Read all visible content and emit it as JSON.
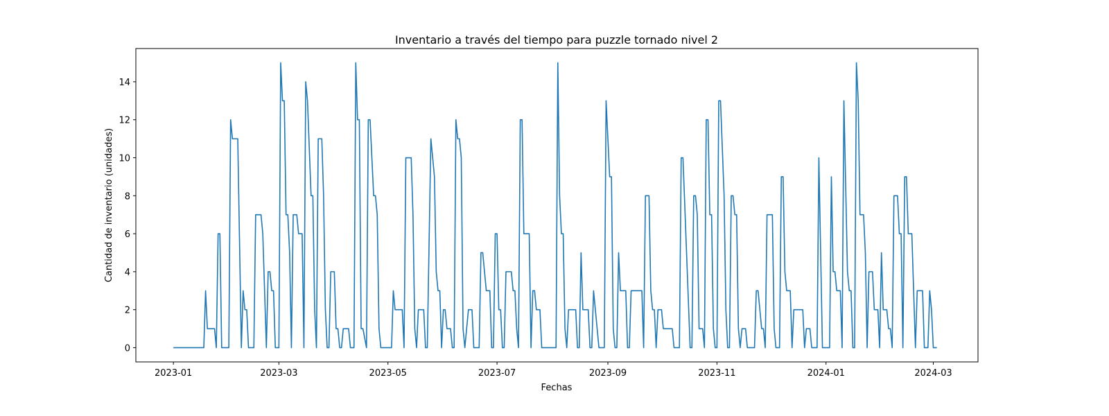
{
  "chart_data": {
    "type": "line",
    "title": "Inventario a través del tiempo para puzzle tornado nivel 2",
    "xlabel": "Fechas",
    "ylabel": "Cantidad de inventario (unidades)",
    "color": "#1f77b4",
    "grid": false,
    "xlim": [
      -21,
      450
    ],
    "ylim": [
      -0.75,
      15.75
    ],
    "xticks": [
      {
        "value": 0,
        "label": "2023-01"
      },
      {
        "value": 59,
        "label": "2023-03"
      },
      {
        "value": 120,
        "label": "2023-05"
      },
      {
        "value": 181,
        "label": "2023-07"
      },
      {
        "value": 243,
        "label": "2023-09"
      },
      {
        "value": 304,
        "label": "2023-11"
      },
      {
        "value": 365,
        "label": "2024-01"
      },
      {
        "value": 425,
        "label": "2024-03"
      }
    ],
    "yticks": [
      0,
      2,
      4,
      6,
      8,
      10,
      12,
      14
    ],
    "x": [
      0,
      17,
      18,
      19,
      23,
      24,
      25,
      26,
      27,
      31,
      32,
      33,
      36,
      38,
      39,
      40,
      41,
      42,
      45,
      46,
      49,
      50,
      52,
      53,
      54,
      55,
      56,
      57,
      59,
      60,
      61,
      62,
      63,
      64,
      65,
      66,
      67,
      69,
      70,
      72,
      73,
      74,
      75,
      77,
      78,
      79,
      80,
      81,
      83,
      84,
      85,
      86,
      87,
      88,
      90,
      91,
      92,
      93,
      94,
      95,
      98,
      99,
      101,
      102,
      103,
      104,
      105,
      106,
      108,
      109,
      110,
      112,
      113,
      114,
      115,
      116,
      122,
      123,
      124,
      128,
      129,
      130,
      133,
      134,
      135,
      136,
      137,
      140,
      141,
      142,
      144,
      146,
      147,
      148,
      149,
      150,
      151,
      152,
      153,
      155,
      156,
      157,
      158,
      159,
      160,
      161,
      162,
      163,
      165,
      167,
      168,
      171,
      172,
      173,
      175,
      177,
      178,
      179,
      180,
      181,
      182,
      183,
      184,
      185,
      186,
      189,
      190,
      191,
      192,
      193,
      194,
      195,
      196,
      199,
      200,
      201,
      202,
      203,
      205,
      206,
      214,
      215,
      216,
      217,
      218,
      219,
      220,
      221,
      225,
      226,
      227,
      228,
      229,
      232,
      233,
      234,
      235,
      238,
      241,
      242,
      244,
      245,
      246,
      247,
      248,
      249,
      250,
      253,
      254,
      255,
      256,
      262,
      263,
      264,
      266,
      267,
      268,
      269,
      270,
      271,
      273,
      274,
      279,
      280,
      283,
      284,
      285,
      289,
      290,
      291,
      292,
      293,
      294,
      296,
      297,
      298,
      299,
      300,
      301,
      302,
      303,
      304,
      305,
      306,
      308,
      309,
      310,
      311,
      312,
      313,
      314,
      315,
      316,
      317,
      318,
      320,
      321,
      325,
      326,
      327,
      329,
      330,
      331,
      332,
      335,
      336,
      337,
      339,
      340,
      341,
      342,
      343,
      345,
      346,
      347,
      352,
      353,
      354,
      356,
      357,
      360,
      361,
      363,
      367,
      368,
      369,
      370,
      371,
      373,
      374,
      375,
      377,
      378,
      379,
      380,
      381,
      382,
      383,
      384,
      386,
      387,
      388,
      389,
      391,
      392,
      394,
      395,
      396,
      397,
      399,
      400,
      401,
      402,
      403,
      405,
      406,
      407,
      408,
      409,
      410,
      411,
      413,
      414,
      415,
      416,
      419,
      420,
      422,
      423,
      424,
      425,
      427
    ],
    "values": [
      0,
      0,
      3,
      1,
      1,
      0,
      6,
      6,
      0,
      0,
      12,
      11,
      11,
      0,
      3,
      2,
      2,
      0,
      0,
      7,
      7,
      6,
      0,
      4,
      4,
      3,
      3,
      0,
      0,
      15,
      13,
      13,
      7,
      7,
      5,
      0,
      7,
      7,
      6,
      6,
      0,
      14,
      13,
      8,
      8,
      2,
      0,
      11,
      11,
      8,
      2,
      0,
      0,
      4,
      4,
      1,
      1,
      0,
      0,
      1,
      1,
      0,
      0,
      15,
      12,
      12,
      1,
      1,
      0,
      12,
      12,
      8,
      8,
      7,
      1,
      0,
      0,
      3,
      2,
      2,
      0,
      10,
      10,
      7,
      1,
      0,
      2,
      2,
      0,
      0,
      11,
      9,
      4,
      3,
      3,
      0,
      2,
      2,
      1,
      1,
      0,
      0,
      12,
      11,
      11,
      10,
      1,
      0,
      2,
      2,
      0,
      0,
      5,
      5,
      3,
      3,
      0,
      0,
      6,
      6,
      2,
      2,
      0,
      0,
      4,
      4,
      3,
      3,
      1,
      0,
      12,
      12,
      6,
      6,
      0,
      3,
      3,
      2,
      2,
      0,
      0,
      15,
      8,
      6,
      6,
      1,
      0,
      2,
      2,
      0,
      0,
      5,
      2,
      2,
      0,
      0,
      3,
      0,
      0,
      13,
      9,
      9,
      1,
      0,
      0,
      5,
      3,
      3,
      0,
      0,
      3,
      3,
      0,
      8,
      8,
      3,
      2,
      2,
      0,
      2,
      2,
      1,
      1,
      0,
      0,
      10,
      10,
      0,
      0,
      8,
      8,
      7,
      1,
      1,
      0,
      12,
      12,
      7,
      7,
      1,
      0,
      0,
      13,
      13,
      8,
      2,
      0,
      0,
      8,
      8,
      7,
      7,
      1,
      0,
      1,
      1,
      0,
      0,
      3,
      3,
      1,
      1,
      0,
      7,
      7,
      1,
      0,
      0,
      9,
      9,
      4,
      3,
      3,
      0,
      2,
      2,
      0,
      1,
      1,
      0,
      0,
      10,
      0,
      0,
      9,
      4,
      4,
      3,
      3,
      0,
      13,
      4,
      3,
      3,
      0,
      0,
      15,
      13,
      7,
      7,
      5,
      0,
      4,
      4,
      2,
      2,
      0,
      5,
      2,
      2,
      1,
      1,
      0,
      8,
      8,
      6,
      6,
      0,
      9,
      9,
      6,
      6,
      3,
      0,
      3,
      3,
      0,
      0,
      3,
      2,
      0,
      0
    ]
  }
}
